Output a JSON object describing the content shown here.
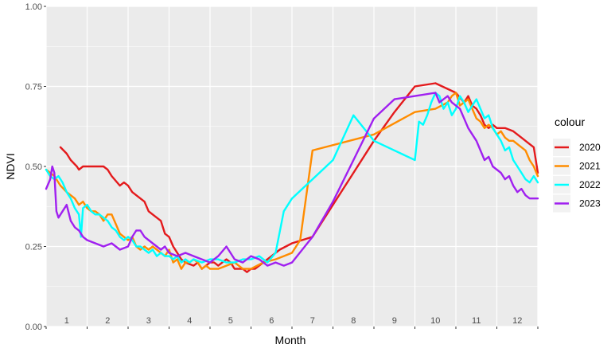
{
  "chart_data": {
    "type": "line",
    "xlabel": "Month",
    "ylabel": "NDVI",
    "xlim": [
      0,
      12
    ],
    "ylim": [
      0,
      1
    ],
    "x_tick_labels": [
      "1",
      "2",
      "3",
      "4",
      "5",
      "6",
      "7",
      "8",
      "9",
      "10",
      "11",
      "12"
    ],
    "y_ticks": [
      0.0,
      0.25,
      0.5,
      0.75,
      1.0
    ],
    "y_tick_labels": [
      "0.00",
      "0.25",
      "0.50",
      "0.75",
      "1.00"
    ],
    "grid": true,
    "legend_title": "colour",
    "legend_position": "right",
    "series": [
      {
        "name": "2020",
        "color": "#e41a1c",
        "x": [
          0.35,
          0.5,
          0.6,
          0.75,
          0.8,
          0.9,
          1.0,
          1.2,
          1.4,
          1.5,
          1.6,
          1.8,
          1.9,
          2.0,
          2.1,
          2.2,
          2.4,
          2.5,
          2.6,
          2.8,
          2.9,
          3.0,
          3.1,
          3.2,
          3.3,
          3.4,
          3.6,
          3.7,
          3.8,
          3.9,
          4.0,
          4.1,
          4.2,
          4.3,
          4.4,
          4.5,
          4.6,
          4.8,
          4.9,
          5.0,
          5.1,
          5.2,
          5.4,
          5.5,
          5.7,
          6.0,
          6.5,
          7.0,
          7.5,
          8.0,
          8.5,
          9.0,
          9.5,
          10.0,
          10.2,
          10.3,
          10.4,
          10.5,
          10.6,
          10.7,
          10.8,
          10.9,
          11.0,
          11.2,
          11.4,
          11.6,
          11.8,
          11.9,
          12.0
        ],
        "y": [
          0.56,
          0.54,
          0.52,
          0.5,
          0.49,
          0.5,
          0.5,
          0.5,
          0.5,
          0.49,
          0.47,
          0.44,
          0.45,
          0.44,
          0.42,
          0.41,
          0.39,
          0.36,
          0.35,
          0.33,
          0.29,
          0.28,
          0.25,
          0.23,
          0.21,
          0.2,
          0.19,
          0.2,
          0.18,
          0.19,
          0.2,
          0.2,
          0.19,
          0.2,
          0.21,
          0.2,
          0.18,
          0.18,
          0.17,
          0.18,
          0.18,
          0.19,
          0.21,
          0.22,
          0.24,
          0.26,
          0.28,
          0.38,
          0.48,
          0.58,
          0.67,
          0.75,
          0.76,
          0.73,
          0.7,
          0.72,
          0.69,
          0.68,
          0.66,
          0.63,
          0.62,
          0.63,
          0.62,
          0.62,
          0.61,
          0.59,
          0.57,
          0.56,
          0.48
        ]
      },
      {
        "name": "2021",
        "color": "#ff8c00",
        "x": [
          0.0,
          0.2,
          0.35,
          0.5,
          0.6,
          0.7,
          0.8,
          0.9,
          1.0,
          1.1,
          1.2,
          1.3,
          1.4,
          1.5,
          1.6,
          1.7,
          1.8,
          1.9,
          2.0,
          2.1,
          2.2,
          2.3,
          2.4,
          2.5,
          2.6,
          2.7,
          2.8,
          2.9,
          3.0,
          3.1,
          3.2,
          3.3,
          3.4,
          3.5,
          3.6,
          3.7,
          3.8,
          3.9,
          4.0,
          4.2,
          4.4,
          4.6,
          4.8,
          5.0,
          5.3,
          5.6,
          5.8,
          6.0,
          6.2,
          6.5,
          8.0,
          9.0,
          9.5,
          9.8,
          9.9,
          10.0,
          10.1,
          10.2,
          10.3,
          10.4,
          10.5,
          10.6,
          10.7,
          10.8,
          10.9,
          11.0,
          11.1,
          11.2,
          11.3,
          11.4,
          11.5,
          11.6,
          11.7,
          11.8,
          11.9,
          12.0
        ],
        "y": [
          0.49,
          0.47,
          0.44,
          0.42,
          0.41,
          0.4,
          0.38,
          0.39,
          0.37,
          0.36,
          0.36,
          0.35,
          0.33,
          0.35,
          0.35,
          0.32,
          0.29,
          0.28,
          0.27,
          0.28,
          0.25,
          0.24,
          0.25,
          0.24,
          0.25,
          0.24,
          0.23,
          0.22,
          0.24,
          0.2,
          0.21,
          0.18,
          0.2,
          0.2,
          0.21,
          0.2,
          0.18,
          0.19,
          0.18,
          0.18,
          0.19,
          0.2,
          0.18,
          0.18,
          0.2,
          0.21,
          0.22,
          0.23,
          0.27,
          0.55,
          0.6,
          0.67,
          0.68,
          0.7,
          0.72,
          0.73,
          0.69,
          0.7,
          0.71,
          0.68,
          0.65,
          0.64,
          0.62,
          0.63,
          0.62,
          0.6,
          0.61,
          0.59,
          0.58,
          0.58,
          0.57,
          0.56,
          0.55,
          0.52,
          0.5,
          0.47
        ]
      },
      {
        "name": "2022",
        "color": "#00ffff",
        "x": [
          0.0,
          0.1,
          0.2,
          0.3,
          0.4,
          0.5,
          0.6,
          0.7,
          0.8,
          0.85,
          0.9,
          1.0,
          1.1,
          1.2,
          1.3,
          1.4,
          1.5,
          1.6,
          1.7,
          1.8,
          1.9,
          2.0,
          2.1,
          2.2,
          2.3,
          2.4,
          2.5,
          2.6,
          2.7,
          2.8,
          2.9,
          3.0,
          3.1,
          3.2,
          3.3,
          3.4,
          3.5,
          3.6,
          3.8,
          4.0,
          4.2,
          4.4,
          4.6,
          4.8,
          5.0,
          5.2,
          5.4,
          5.6,
          5.8,
          6.0,
          6.5,
          7.0,
          7.5,
          8.0,
          8.5,
          9.0,
          9.1,
          9.2,
          9.3,
          9.4,
          9.5,
          9.6,
          9.7,
          9.8,
          9.9,
          10.0,
          10.1,
          10.2,
          10.3,
          10.4,
          10.5,
          10.6,
          10.7,
          10.8,
          10.9,
          11.0,
          11.1,
          11.2,
          11.3,
          11.4,
          11.5,
          11.6,
          11.7,
          11.8,
          11.9,
          12.0
        ],
        "y": [
          0.49,
          0.47,
          0.46,
          0.47,
          0.45,
          0.42,
          0.4,
          0.37,
          0.35,
          0.28,
          0.37,
          0.38,
          0.36,
          0.35,
          0.35,
          0.34,
          0.33,
          0.31,
          0.3,
          0.28,
          0.27,
          0.28,
          0.27,
          0.25,
          0.25,
          0.24,
          0.23,
          0.24,
          0.22,
          0.23,
          0.22,
          0.22,
          0.21,
          0.22,
          0.2,
          0.21,
          0.2,
          0.21,
          0.2,
          0.21,
          0.21,
          0.2,
          0.2,
          0.21,
          0.21,
          0.22,
          0.2,
          0.23,
          0.36,
          0.4,
          0.46,
          0.52,
          0.66,
          0.58,
          0.55,
          0.52,
          0.64,
          0.63,
          0.66,
          0.7,
          0.73,
          0.72,
          0.68,
          0.7,
          0.66,
          0.68,
          0.72,
          0.7,
          0.67,
          0.69,
          0.71,
          0.68,
          0.65,
          0.66,
          0.62,
          0.6,
          0.58,
          0.55,
          0.56,
          0.52,
          0.5,
          0.48,
          0.46,
          0.45,
          0.47,
          0.45
        ]
      },
      {
        "name": "2023",
        "color": "#a020f0",
        "x": [
          0.0,
          0.1,
          0.15,
          0.2,
          0.25,
          0.3,
          0.4,
          0.5,
          0.6,
          0.7,
          0.8,
          0.9,
          1.0,
          1.2,
          1.4,
          1.6,
          1.8,
          2.0,
          2.1,
          2.2,
          2.3,
          2.4,
          2.5,
          2.6,
          2.7,
          2.8,
          2.9,
          3.0,
          3.2,
          3.4,
          3.6,
          3.8,
          4.0,
          4.2,
          4.4,
          4.6,
          4.8,
          5.0,
          5.2,
          5.4,
          5.6,
          5.8,
          6.0,
          6.5,
          7.0,
          7.5,
          8.0,
          8.5,
          9.0,
          9.5,
          9.6,
          9.7,
          9.8,
          9.9,
          10.0,
          10.1,
          10.2,
          10.3,
          10.4,
          10.5,
          10.6,
          10.7,
          10.8,
          10.9,
          11.0,
          11.1,
          11.2,
          11.3,
          11.4,
          11.5,
          11.6,
          11.7,
          11.8,
          11.9,
          12.0
        ],
        "y": [
          0.43,
          0.46,
          0.5,
          0.48,
          0.36,
          0.34,
          0.36,
          0.38,
          0.33,
          0.31,
          0.3,
          0.28,
          0.27,
          0.26,
          0.25,
          0.26,
          0.24,
          0.25,
          0.28,
          0.3,
          0.3,
          0.28,
          0.27,
          0.26,
          0.25,
          0.24,
          0.25,
          0.23,
          0.22,
          0.23,
          0.22,
          0.21,
          0.2,
          0.22,
          0.25,
          0.21,
          0.2,
          0.22,
          0.21,
          0.19,
          0.2,
          0.19,
          0.2,
          0.28,
          0.39,
          0.52,
          0.65,
          0.71,
          0.72,
          0.73,
          0.7,
          0.71,
          0.72,
          0.7,
          0.69,
          0.68,
          0.65,
          0.62,
          0.6,
          0.58,
          0.55,
          0.52,
          0.53,
          0.5,
          0.49,
          0.48,
          0.46,
          0.47,
          0.44,
          0.42,
          0.43,
          0.41,
          0.4,
          0.4,
          0.4
        ]
      }
    ]
  }
}
